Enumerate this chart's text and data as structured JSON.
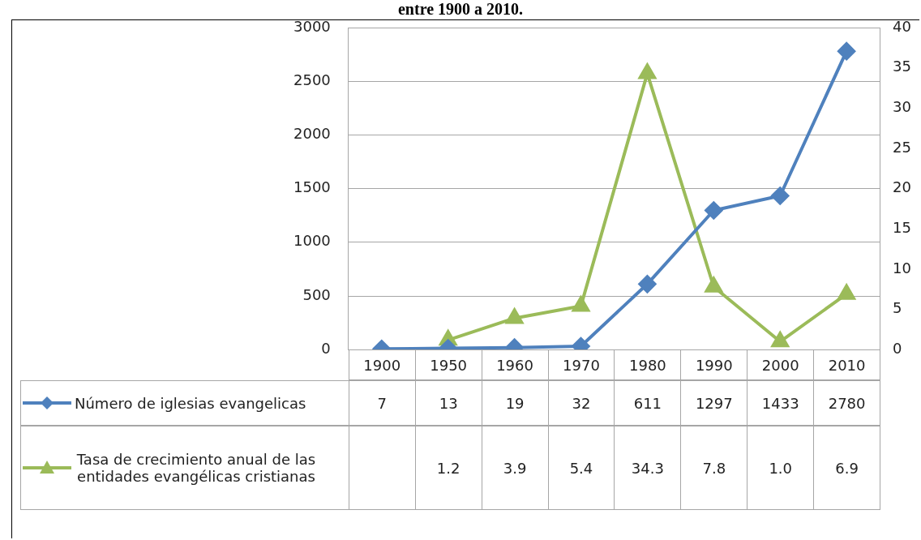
{
  "chart_data": {
    "type": "line",
    "title": "entre 1900 a 2010.",
    "categories": [
      "1900",
      "1950",
      "1960",
      "1970",
      "1980",
      "1990",
      "2000",
      "2010"
    ],
    "series": [
      {
        "name": "Número de iglesias evangelicas",
        "color": "#4f81bd",
        "marker": "diamond",
        "values": [
          7,
          13,
          19,
          32,
          611,
          1297,
          1433,
          2780
        ],
        "value_labels": [
          "7",
          "13",
          "19",
          "32",
          "611",
          "1297",
          "1433",
          "2780"
        ]
      },
      {
        "name": "Tasa de crecimiento anual de las entidades evangélicas cristianas",
        "color": "#9bbb59",
        "marker": "triangle",
        "axis": "y2",
        "values": [
          null,
          1.2,
          3.9,
          5.4,
          34.3,
          7.8,
          1.0,
          6.9
        ],
        "value_labels": [
          null,
          "1.2",
          "3.9",
          "5.4",
          "34.3",
          "7.8",
          "1.0",
          "6.9"
        ]
      }
    ],
    "ylim": [
      0,
      3000
    ],
    "yticks": [
      0,
      500,
      1000,
      1500,
      2000,
      2500,
      3000
    ],
    "y2lim": [
      0,
      40
    ],
    "y2ticks": [
      0,
      5,
      10,
      15,
      20,
      25,
      30,
      35,
      40
    ],
    "grid": "y",
    "legend": "bottom left"
  }
}
